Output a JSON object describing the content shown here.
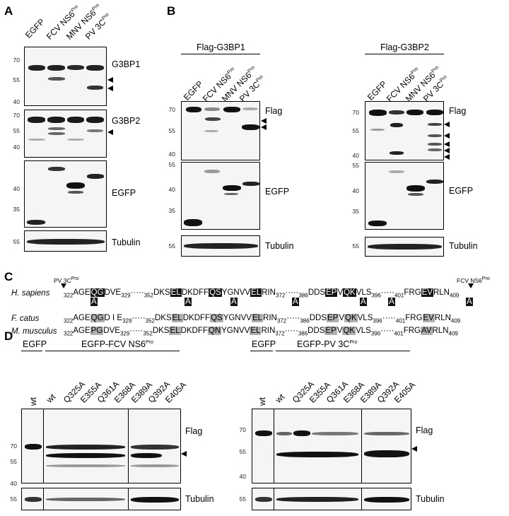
{
  "panels": {
    "A": "A",
    "B": "B",
    "C": "C",
    "D": "D"
  },
  "panelA": {
    "lanes": [
      "EGFP",
      "FCV NS6",
      "MNV NS6",
      "PV 3C"
    ],
    "lane_sup": [
      "",
      "Pro",
      "Pro",
      "Pro"
    ],
    "blots": [
      "G3BP1",
      "G3BP2",
      "EGFP",
      "Tubulin"
    ],
    "mw": {
      "g3bp1": [
        "70",
        "55",
        "40"
      ],
      "g3bp2": [
        "70",
        "55",
        "40"
      ],
      "egfp": [
        "40",
        "35"
      ],
      "tub": [
        "55"
      ]
    }
  },
  "panelB": {
    "group1": "Flag-G3BP1",
    "group2": "Flag-G3BP2",
    "lanes": [
      "EGFP",
      "FCV NS6",
      "MNV NS6",
      "PV 3C"
    ],
    "lane_sup": [
      "",
      "Pro",
      "Pro",
      "Pro"
    ],
    "blots": [
      "Flag",
      "EGFP",
      "Tubulin"
    ],
    "mw_flag": [
      "70",
      "55",
      "40"
    ],
    "mw_egfp": [
      "55",
      "40",
      "35"
    ],
    "mw_tub": [
      "55"
    ]
  },
  "panelC": {
    "pv_label": "PV 3C",
    "pv_sup": "Pro",
    "fcv_label": "FCV NS6",
    "fcv_sup": "Pro",
    "species": [
      "H. sapiens",
      "F. catus",
      "M. musculus"
    ],
    "ala": "A"
  },
  "panelD": {
    "egfp": "EGFP",
    "left_group": "EGFP-FCV NS6",
    "left_sup": "Pro",
    "right_group": "EGFP-PV 3C",
    "right_sup": "Pro",
    "wt": "wt",
    "mutants": [
      "Q325A",
      "E355A",
      "Q361A",
      "E368A",
      "E389A",
      "Q392A",
      "E405A"
    ],
    "blots": [
      "Flag",
      "Tubulin"
    ],
    "mw_flag": [
      "70",
      "55",
      "40"
    ],
    "mw_tub": [
      "55"
    ]
  }
}
